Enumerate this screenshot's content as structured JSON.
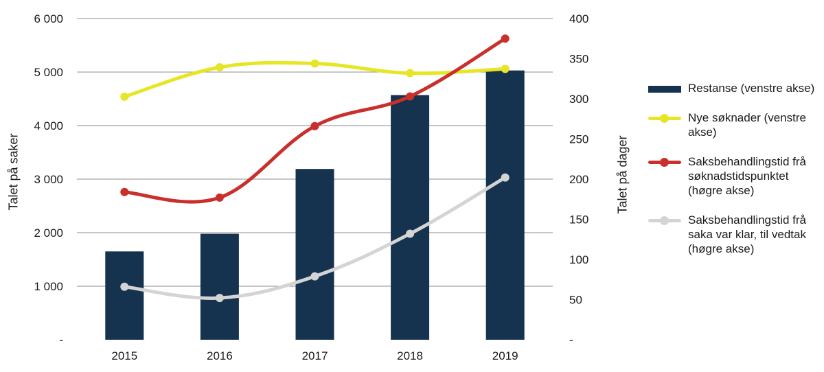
{
  "chart_data": {
    "type": "bar",
    "categories": [
      "2015",
      "2016",
      "2017",
      "2018",
      "2019"
    ],
    "y_left": {
      "label": "Talet på saker",
      "ylim": [
        0,
        6000
      ],
      "ticks": [
        0,
        1000,
        2000,
        3000,
        4000,
        5000,
        6000
      ],
      "tick_labels": [
        "-",
        "1 000",
        "2 000",
        "3 000",
        "4 000",
        "5 000",
        "6 000"
      ]
    },
    "y_right": {
      "label": "Talet på dager",
      "ylim": [
        0,
        400
      ],
      "ticks": [
        0,
        50,
        100,
        150,
        200,
        250,
        300,
        350,
        400
      ],
      "tick_labels": [
        "-",
        "50",
        "100",
        "150",
        "200",
        "250",
        "300",
        "350",
        "400"
      ]
    },
    "grid": true,
    "legend_position": "right",
    "series": [
      {
        "name": "Restanse (venstre akse)",
        "type": "bar",
        "axis": "left",
        "color": "#15324f",
        "values": [
          1650,
          1980,
          3190,
          4570,
          5030
        ]
      },
      {
        "name": "Nye søknader (venstre akse)",
        "type": "line",
        "axis": "left",
        "color": "#e6e626",
        "values": [
          4540,
          5090,
          5160,
          4980,
          5060
        ]
      },
      {
        "name": "Saksbehandlingstid frå søknadstidspunktet (høgre akse)",
        "type": "line",
        "axis": "right",
        "color": "#c9302c",
        "values": [
          184,
          177,
          266,
          303,
          375
        ]
      },
      {
        "name": "Saksbehandlingstid frå saka var klar, til vedtak (høgre akse)",
        "type": "line",
        "axis": "right",
        "color": "#d4d4d4",
        "values": [
          66,
          52,
          79,
          132,
          202
        ]
      }
    ]
  }
}
